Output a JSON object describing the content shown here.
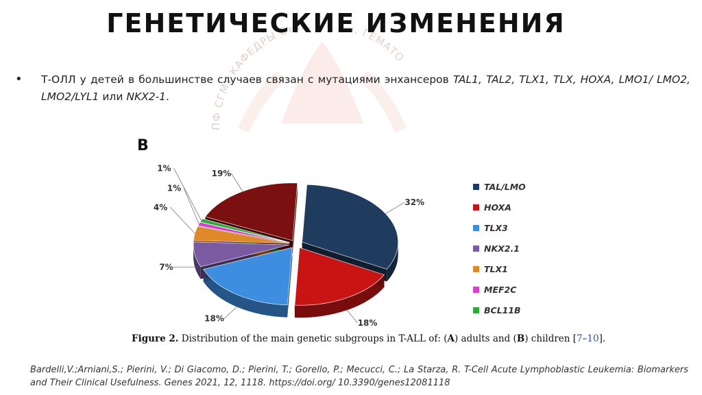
{
  "title": "ГЕНЕТИЧЕСКИЕ ИЗМЕНЕНИЯ",
  "watermark": {
    "text": "ПФ СГМУ КАФЕДРЫ ОНКОЛОГИИ, ГЕМАТО",
    "color": "#f3c9c0"
  },
  "bullet": {
    "lead": "Т-ОЛЛ у детей в большинстве случаев связан с мутациями энхансеров ",
    "genes": "TAL1, TAL2, TLX1, TLX, HOXA, LMO1/ LMO2, LMO2/LYL1",
    "mid": " или ",
    "last_gene": "NKX2-1",
    "end": "."
  },
  "panel_letter": "B",
  "chart_data": {
    "type": "pie",
    "style": "3d-exploded",
    "legend_position": "right",
    "series": [
      {
        "name": "TAL/LMO",
        "value": 32,
        "label": "32%",
        "color": "#1f3b5e"
      },
      {
        "name": "HOXA",
        "value": 18,
        "label": "18%",
        "color": "#c91414"
      },
      {
        "name": "TLX3",
        "value": 18,
        "label": "18%",
        "color": "#3d8ee0"
      },
      {
        "name": "NKX2.1",
        "value": 7,
        "label": "7%",
        "color": "#7a5aa0"
      },
      {
        "name": "TLX1",
        "value": 4,
        "label": "4%",
        "color": "#e0892b"
      },
      {
        "name": "MEF2C",
        "value": 1,
        "label": "1%",
        "color": "#d63fd0"
      },
      {
        "name": "BCL11B",
        "value": 1,
        "label": "1%",
        "color": "#2eaa3a"
      },
      {
        "name": "",
        "value": 19,
        "label": "19%",
        "color": "#7a1010"
      }
    ]
  },
  "caption": {
    "fig": "Figure 2.",
    "text1": " Distribution of the main genetic subgroups in T-ALL of: (",
    "a": "A",
    "text2": ") adults and (",
    "b": "B",
    "text3": ") children [",
    "ref1": "7",
    "dash": "–",
    "ref2": "10",
    "text4": "]."
  },
  "citation": "Bardelli,V.;Arniani,S.; Pierini, V.; Di Giacomo, D.; Pierini, T.; Gorello, P.; Mecucci, C.; La Starza, R. T-Cell Acute Lymphoblastic Leukemia: Biomarkers and Their Clinical Usefulness. Genes 2021, 12, 1118. https://doi.org/ 10.3390/genes12081118"
}
